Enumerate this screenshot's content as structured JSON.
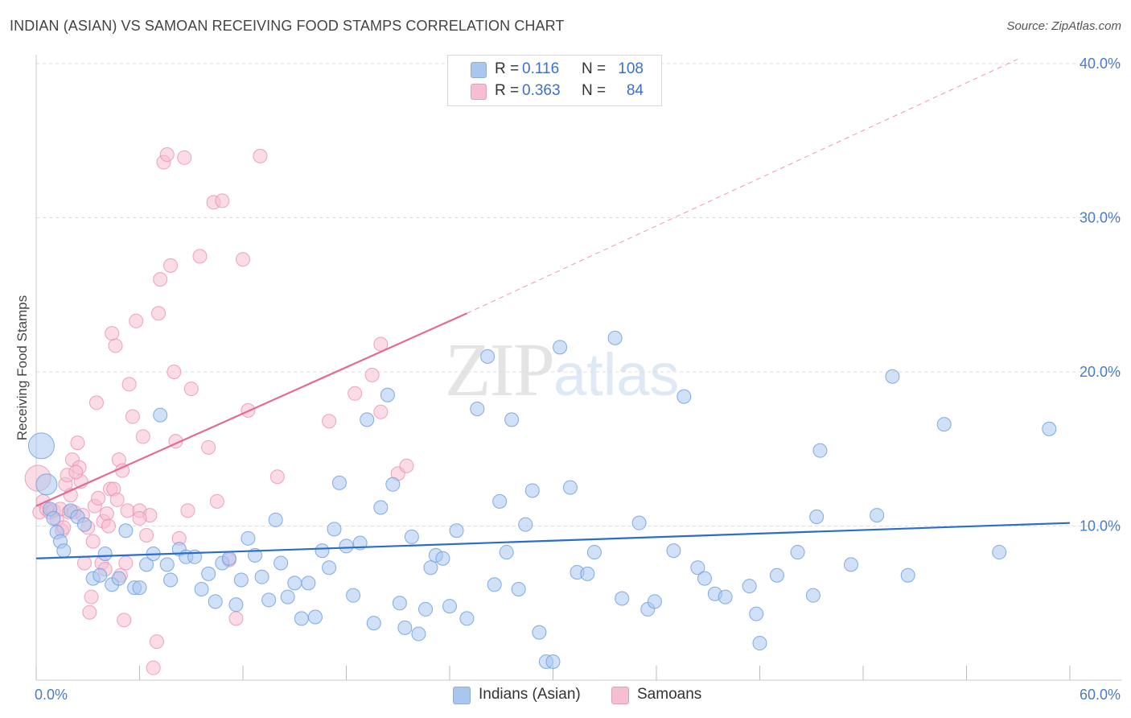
{
  "header": {
    "title": "INDIAN (ASIAN) VS SAMOAN RECEIVING FOOD STAMPS CORRELATION CHART",
    "source": "Source: ZipAtlas.com"
  },
  "watermark": {
    "zip": "ZIP",
    "atlas": "atlas"
  },
  "stats": [
    {
      "r_label": "R =",
      "r_value": "0.116",
      "n_label": "N =",
      "n_value": "108",
      "color": "#a9c6ef"
    },
    {
      "r_label": "R =",
      "r_value": "0.363",
      "n_label": "N =",
      "n_value": "84",
      "color": "#f7bdd0"
    }
  ],
  "legend": [
    {
      "label": "Indians (Asian)",
      "color": "#a9c6ef"
    },
    {
      "label": "Samoans",
      "color": "#f7bdd0"
    }
  ],
  "colors": {
    "blue_fill": "#a9c6ef",
    "blue_stroke": "#6f9fe0",
    "blue_line": "#2a6dcc",
    "pink_fill": "#f7bdd0",
    "pink_stroke": "#ea8fb0",
    "pink_line": "#e46a96",
    "grid": "#dddddd",
    "tick_text": "#4a7bc8"
  },
  "chart_data": {
    "type": "scatter",
    "title": "INDIAN (ASIAN) VS SAMOAN RECEIVING FOOD STAMPS CORRELATION CHART",
    "xlabel": "",
    "ylabel": "Receiving Food Stamps",
    "xlim": [
      0,
      60
    ],
    "ylim": [
      0,
      40
    ],
    "x_tick_labels": [
      "0.0%",
      "60.0%"
    ],
    "y_ticks": [
      10,
      20,
      30,
      40
    ],
    "y_tick_labels": [
      "10.0%",
      "20.0%",
      "30.0%",
      "40.0%"
    ],
    "grid": true,
    "legend_position": "bottom",
    "series": [
      {
        "name": "Indians (Asian)",
        "color": "#a9c6ef",
        "trend": {
          "x": [
            0,
            60
          ],
          "y": [
            7.9,
            10.2
          ],
          "dashed_extension": false
        },
        "points": [
          [
            0.3,
            15.2
          ],
          [
            0.6,
            12.7
          ],
          [
            0.8,
            11.1
          ],
          [
            1.0,
            10.5
          ],
          [
            1.2,
            9.6
          ],
          [
            1.4,
            9.0
          ],
          [
            1.6,
            8.4
          ],
          [
            2.0,
            11.0
          ],
          [
            2.4,
            10.6
          ],
          [
            2.8,
            10.1
          ],
          [
            3.3,
            6.6
          ],
          [
            3.7,
            6.8
          ],
          [
            4.0,
            8.2
          ],
          [
            4.4,
            6.2
          ],
          [
            4.8,
            6.6
          ],
          [
            5.2,
            9.7
          ],
          [
            5.7,
            6.0
          ],
          [
            6.0,
            6.0
          ],
          [
            6.4,
            7.5
          ],
          [
            6.8,
            8.2
          ],
          [
            7.2,
            17.2
          ],
          [
            7.6,
            7.5
          ],
          [
            7.8,
            6.5
          ],
          [
            8.3,
            8.5
          ],
          [
            8.7,
            8.0
          ],
          [
            9.2,
            8.0
          ],
          [
            9.6,
            5.9
          ],
          [
            10.0,
            6.9
          ],
          [
            10.4,
            5.1
          ],
          [
            10.8,
            7.6
          ],
          [
            11.2,
            7.9
          ],
          [
            11.6,
            4.9
          ],
          [
            11.9,
            6.5
          ],
          [
            12.3,
            9.2
          ],
          [
            12.7,
            8.1
          ],
          [
            13.1,
            6.7
          ],
          [
            13.5,
            5.2
          ],
          [
            13.9,
            10.4
          ],
          [
            14.2,
            7.6
          ],
          [
            14.6,
            5.4
          ],
          [
            15.0,
            6.3
          ],
          [
            15.4,
            4.0
          ],
          [
            15.8,
            6.3
          ],
          [
            16.2,
            4.1
          ],
          [
            16.6,
            8.4
          ],
          [
            17.0,
            7.3
          ],
          [
            17.3,
            9.8
          ],
          [
            17.6,
            12.8
          ],
          [
            18.0,
            8.7
          ],
          [
            18.4,
            5.5
          ],
          [
            18.8,
            8.9
          ],
          [
            19.2,
            16.9
          ],
          [
            19.6,
            3.7
          ],
          [
            20.0,
            11.2
          ],
          [
            20.4,
            18.5
          ],
          [
            20.7,
            12.7
          ],
          [
            21.1,
            5.0
          ],
          [
            21.4,
            3.4
          ],
          [
            21.8,
            9.3
          ],
          [
            22.2,
            3.0
          ],
          [
            22.6,
            4.6
          ],
          [
            22.9,
            7.3
          ],
          [
            23.2,
            8.1
          ],
          [
            23.6,
            7.9
          ],
          [
            24.0,
            4.8
          ],
          [
            24.4,
            9.7
          ],
          [
            25.0,
            4.0
          ],
          [
            25.6,
            17.6
          ],
          [
            26.2,
            21.0
          ],
          [
            26.6,
            6.2
          ],
          [
            26.9,
            11.6
          ],
          [
            27.3,
            8.3
          ],
          [
            27.6,
            16.9
          ],
          [
            28.0,
            5.9
          ],
          [
            28.4,
            10.1
          ],
          [
            28.8,
            12.3
          ],
          [
            29.2,
            3.1
          ],
          [
            29.6,
            1.2
          ],
          [
            30.0,
            1.2
          ],
          [
            30.4,
            21.6
          ],
          [
            31.0,
            12.5
          ],
          [
            31.4,
            7.0
          ],
          [
            32.0,
            6.9
          ],
          [
            32.4,
            8.3
          ],
          [
            33.6,
            22.2
          ],
          [
            34.0,
            5.3
          ],
          [
            35.0,
            10.2
          ],
          [
            35.5,
            4.6
          ],
          [
            35.9,
            5.1
          ],
          [
            37.0,
            8.4
          ],
          [
            37.6,
            18.4
          ],
          [
            38.4,
            7.3
          ],
          [
            38.8,
            6.6
          ],
          [
            39.4,
            5.6
          ],
          [
            40.0,
            5.4
          ],
          [
            41.4,
            6.1
          ],
          [
            41.8,
            4.3
          ],
          [
            42.0,
            2.4
          ],
          [
            43.0,
            6.8
          ],
          [
            44.2,
            8.3
          ],
          [
            45.1,
            5.5
          ],
          [
            45.3,
            10.6
          ],
          [
            45.5,
            14.9
          ],
          [
            47.3,
            7.5
          ],
          [
            48.8,
            10.7
          ],
          [
            49.7,
            19.7
          ],
          [
            50.6,
            6.8
          ],
          [
            52.7,
            16.6
          ],
          [
            55.9,
            8.3
          ],
          [
            58.8,
            16.3
          ]
        ]
      },
      {
        "name": "Samoans",
        "color": "#f7bdd0",
        "trend": {
          "x": [
            0,
            25
          ],
          "y": [
            11.3,
            23.8
          ],
          "dashed_extension": {
            "x": [
              25,
              57
            ],
            "y": [
              23.8,
              40.3
            ]
          }
        },
        "points": [
          [
            0.1,
            13.1
          ],
          [
            0.2,
            10.9
          ],
          [
            0.4,
            11.6
          ],
          [
            0.6,
            11.1
          ],
          [
            0.8,
            10.9
          ],
          [
            1.0,
            11.0
          ],
          [
            1.2,
            10.4
          ],
          [
            1.4,
            11.1
          ],
          [
            1.5,
            9.7
          ],
          [
            1.7,
            12.7
          ],
          [
            1.8,
            13.3
          ],
          [
            1.9,
            10.9
          ],
          [
            2.0,
            12.0
          ],
          [
            2.1,
            14.3
          ],
          [
            2.2,
            10.9
          ],
          [
            2.4,
            15.4
          ],
          [
            2.5,
            13.8
          ],
          [
            2.6,
            12.9
          ],
          [
            2.7,
            10.7
          ],
          [
            2.8,
            7.6
          ],
          [
            3.0,
            9.9
          ],
          [
            3.1,
            4.4
          ],
          [
            3.2,
            5.4
          ],
          [
            3.4,
            11.3
          ],
          [
            3.5,
            18.0
          ],
          [
            3.6,
            11.8
          ],
          [
            3.8,
            7.6
          ],
          [
            3.9,
            10.3
          ],
          [
            4.0,
            7.2
          ],
          [
            4.1,
            10.8
          ],
          [
            4.2,
            10.0
          ],
          [
            4.3,
            12.4
          ],
          [
            4.4,
            22.5
          ],
          [
            4.5,
            12.4
          ],
          [
            4.6,
            21.7
          ],
          [
            4.8,
            14.3
          ],
          [
            4.9,
            6.8
          ],
          [
            5.0,
            13.6
          ],
          [
            5.1,
            3.9
          ],
          [
            5.2,
            7.6
          ],
          [
            5.3,
            11.0
          ],
          [
            5.4,
            19.2
          ],
          [
            5.6,
            17.1
          ],
          [
            5.8,
            23.3
          ],
          [
            6.0,
            11.0
          ],
          [
            6.2,
            15.8
          ],
          [
            6.4,
            9.4
          ],
          [
            6.6,
            10.7
          ],
          [
            6.8,
            0.8
          ],
          [
            7.0,
            2.5
          ],
          [
            7.1,
            23.8
          ],
          [
            7.2,
            26.0
          ],
          [
            7.4,
            33.6
          ],
          [
            7.6,
            34.1
          ],
          [
            7.8,
            26.9
          ],
          [
            8.0,
            20.0
          ],
          [
            8.1,
            15.5
          ],
          [
            8.3,
            9.2
          ],
          [
            8.6,
            33.9
          ],
          [
            8.8,
            11.0
          ],
          [
            9.0,
            18.9
          ],
          [
            9.5,
            27.5
          ],
          [
            10.0,
            15.1
          ],
          [
            10.3,
            31.0
          ],
          [
            10.5,
            11.6
          ],
          [
            10.8,
            31.1
          ],
          [
            11.2,
            7.8
          ],
          [
            11.6,
            4.0
          ],
          [
            12.0,
            27.3
          ],
          [
            12.3,
            17.5
          ],
          [
            13.0,
            34.0
          ],
          [
            14.0,
            13.2
          ],
          [
            17.0,
            16.8
          ],
          [
            18.5,
            18.6
          ],
          [
            19.5,
            19.8
          ],
          [
            20.0,
            17.4
          ],
          [
            21.0,
            13.4
          ],
          [
            21.5,
            13.9
          ],
          [
            20.0,
            21.8
          ],
          [
            6.0,
            10.5
          ],
          [
            2.3,
            13.5
          ],
          [
            1.6,
            9.9
          ],
          [
            4.7,
            11.7
          ],
          [
            3.3,
            9.0
          ]
        ]
      }
    ]
  }
}
